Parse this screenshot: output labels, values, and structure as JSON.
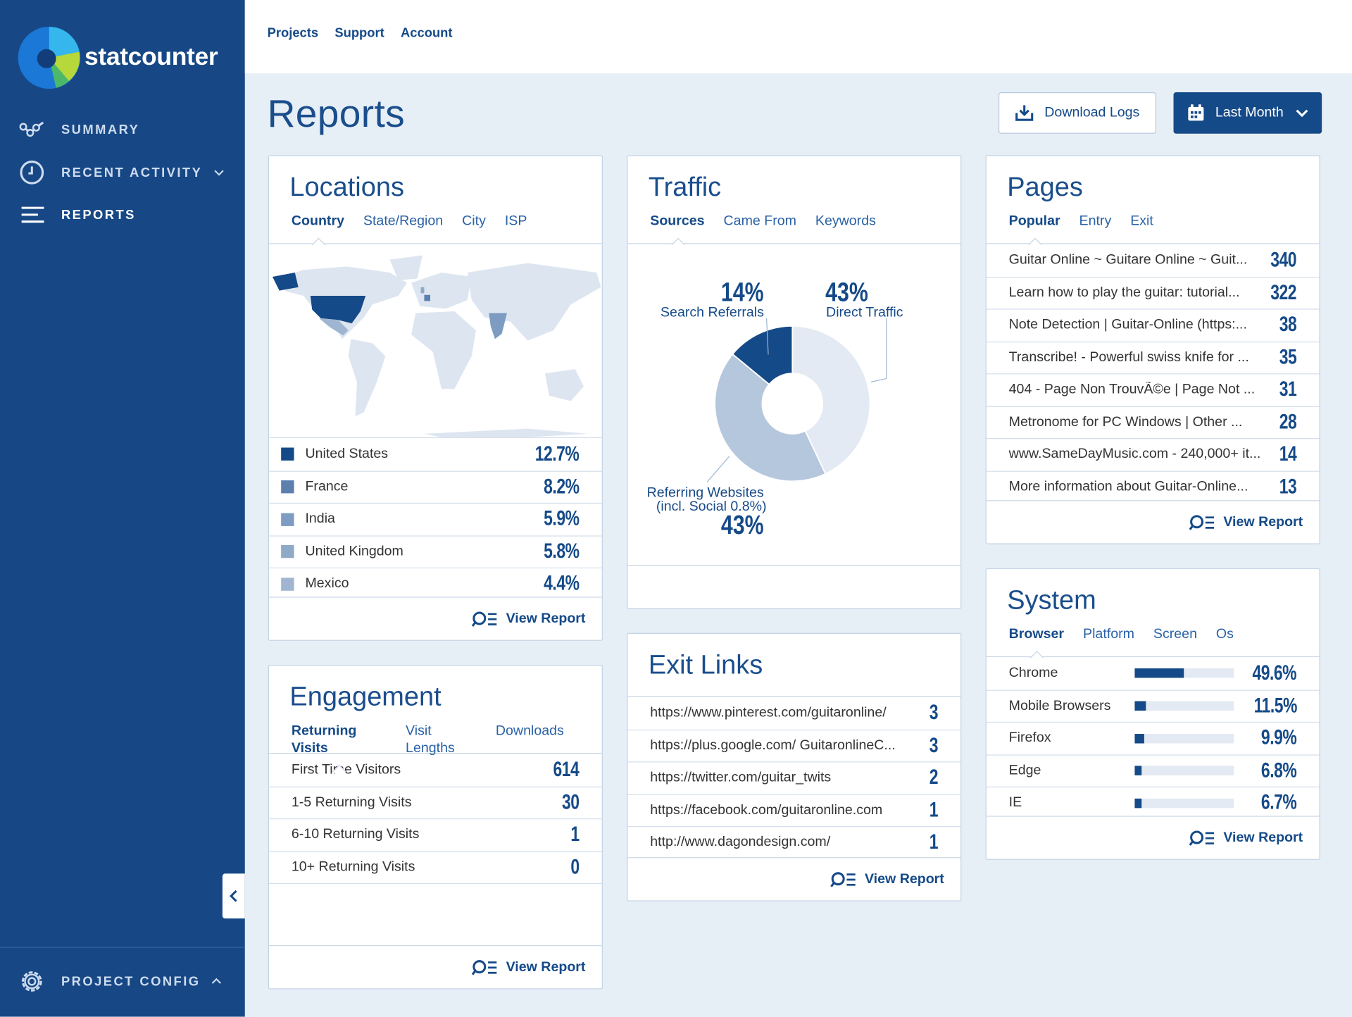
{
  "sidebar": {
    "brand": "statcounter",
    "nav": [
      "SUMMARY",
      "RECENT ACTIVITY",
      "REPORTS"
    ],
    "config": "PROJECT CONFIG"
  },
  "topnav": [
    "Projects",
    "Support",
    "Account"
  ],
  "header": {
    "title": "Reports",
    "download": "Download Logs",
    "range": "Last Month"
  },
  "locations": {
    "title": "Locations",
    "tabs": [
      "Country",
      "State/Region",
      "City",
      "ISP"
    ],
    "rows": [
      {
        "label": "United States",
        "value": "12.7%",
        "color": "#154a88"
      },
      {
        "label": "France",
        "value": "8.2%",
        "color": "#5b7fae"
      },
      {
        "label": "India",
        "value": "5.9%",
        "color": "#7e9cc2"
      },
      {
        "label": "United Kingdom",
        "value": "5.8%",
        "color": "#8fa9c8"
      },
      {
        "label": "Mexico",
        "value": "4.4%",
        "color": "#9fb5d1"
      }
    ],
    "link": "View Report"
  },
  "traffic": {
    "title": "Traffic",
    "tabs": [
      "Sources",
      "Came From",
      "Keywords"
    ],
    "segments": [
      {
        "label": "Direct Traffic",
        "value": 43,
        "value_label": "43%",
        "color": "#e3eaf3"
      },
      {
        "label": "Referring Websites",
        "note": "(incl. Social 0.8%)",
        "value": 43,
        "value_label": "43%",
        "color": "#b5c7dd"
      },
      {
        "label": "Search Referrals",
        "value": 14,
        "value_label": "14%",
        "color": "#154a88"
      }
    ]
  },
  "pages": {
    "title": "Pages",
    "tabs": [
      "Popular",
      "Entry",
      "Exit"
    ],
    "rows": [
      {
        "label": "Guitar Online ~ Guitare Online ~ Guit...",
        "value": 340
      },
      {
        "label": "Learn how to play the guitar: tutorial...",
        "value": 322
      },
      {
        "label": "Note Detection | Guitar-Online (https:...",
        "value": 38
      },
      {
        "label": "Transcribe! - Powerful swiss knife for ...",
        "value": 35
      },
      {
        "label": "404 - Page Non TrouvÃ©e | Page Not ...",
        "value": 31
      },
      {
        "label": "Metronome for PC Windows | Other ...",
        "value": 28
      },
      {
        "label": "www.SameDayMusic.com - 240,000+ it...",
        "value": 14
      },
      {
        "label": "More information about Guitar-Online...",
        "value": 13
      }
    ],
    "link": "View Report"
  },
  "engagement": {
    "title": "Engagement",
    "tabs": [
      "Returning Visits",
      "Visit Lengths",
      "Downloads"
    ],
    "rows": [
      {
        "label": "First Time Visitors",
        "value": 614
      },
      {
        "label": "1-5 Returning Visits",
        "value": 30
      },
      {
        "label": "6-10 Returning Visits",
        "value": 1
      },
      {
        "label": "10+ Returning Visits",
        "value": 0
      }
    ],
    "link": "View Report"
  },
  "exit_links": {
    "title": "Exit Links",
    "rows": [
      {
        "label": "https://www.pinterest.com/guitaronline/",
        "value": 3
      },
      {
        "label": "https://plus.google.com/ GuitaronlineC...",
        "value": 3
      },
      {
        "label": "https://twitter.com/guitar_twits",
        "value": 2
      },
      {
        "label": "https://facebook.com/guitaronline.com",
        "value": 1
      },
      {
        "label": "http://www.dagondesign.com/",
        "value": 1
      }
    ],
    "link": "View Report"
  },
  "system": {
    "title": "System",
    "tabs": [
      "Browser",
      "Platform",
      "Screen",
      "Os"
    ],
    "rows": [
      {
        "label": "Chrome",
        "value": 49.6,
        "value_label": "49.6%"
      },
      {
        "label": "Mobile Browsers",
        "value": 11.5,
        "value_label": "11.5%"
      },
      {
        "label": "Firefox",
        "value": 9.9,
        "value_label": "9.9%"
      },
      {
        "label": "Edge",
        "value": 6.8,
        "value_label": "6.8%"
      },
      {
        "label": "IE",
        "value": 6.7,
        "value_label": "6.7%"
      }
    ],
    "link": "View Report"
  }
}
